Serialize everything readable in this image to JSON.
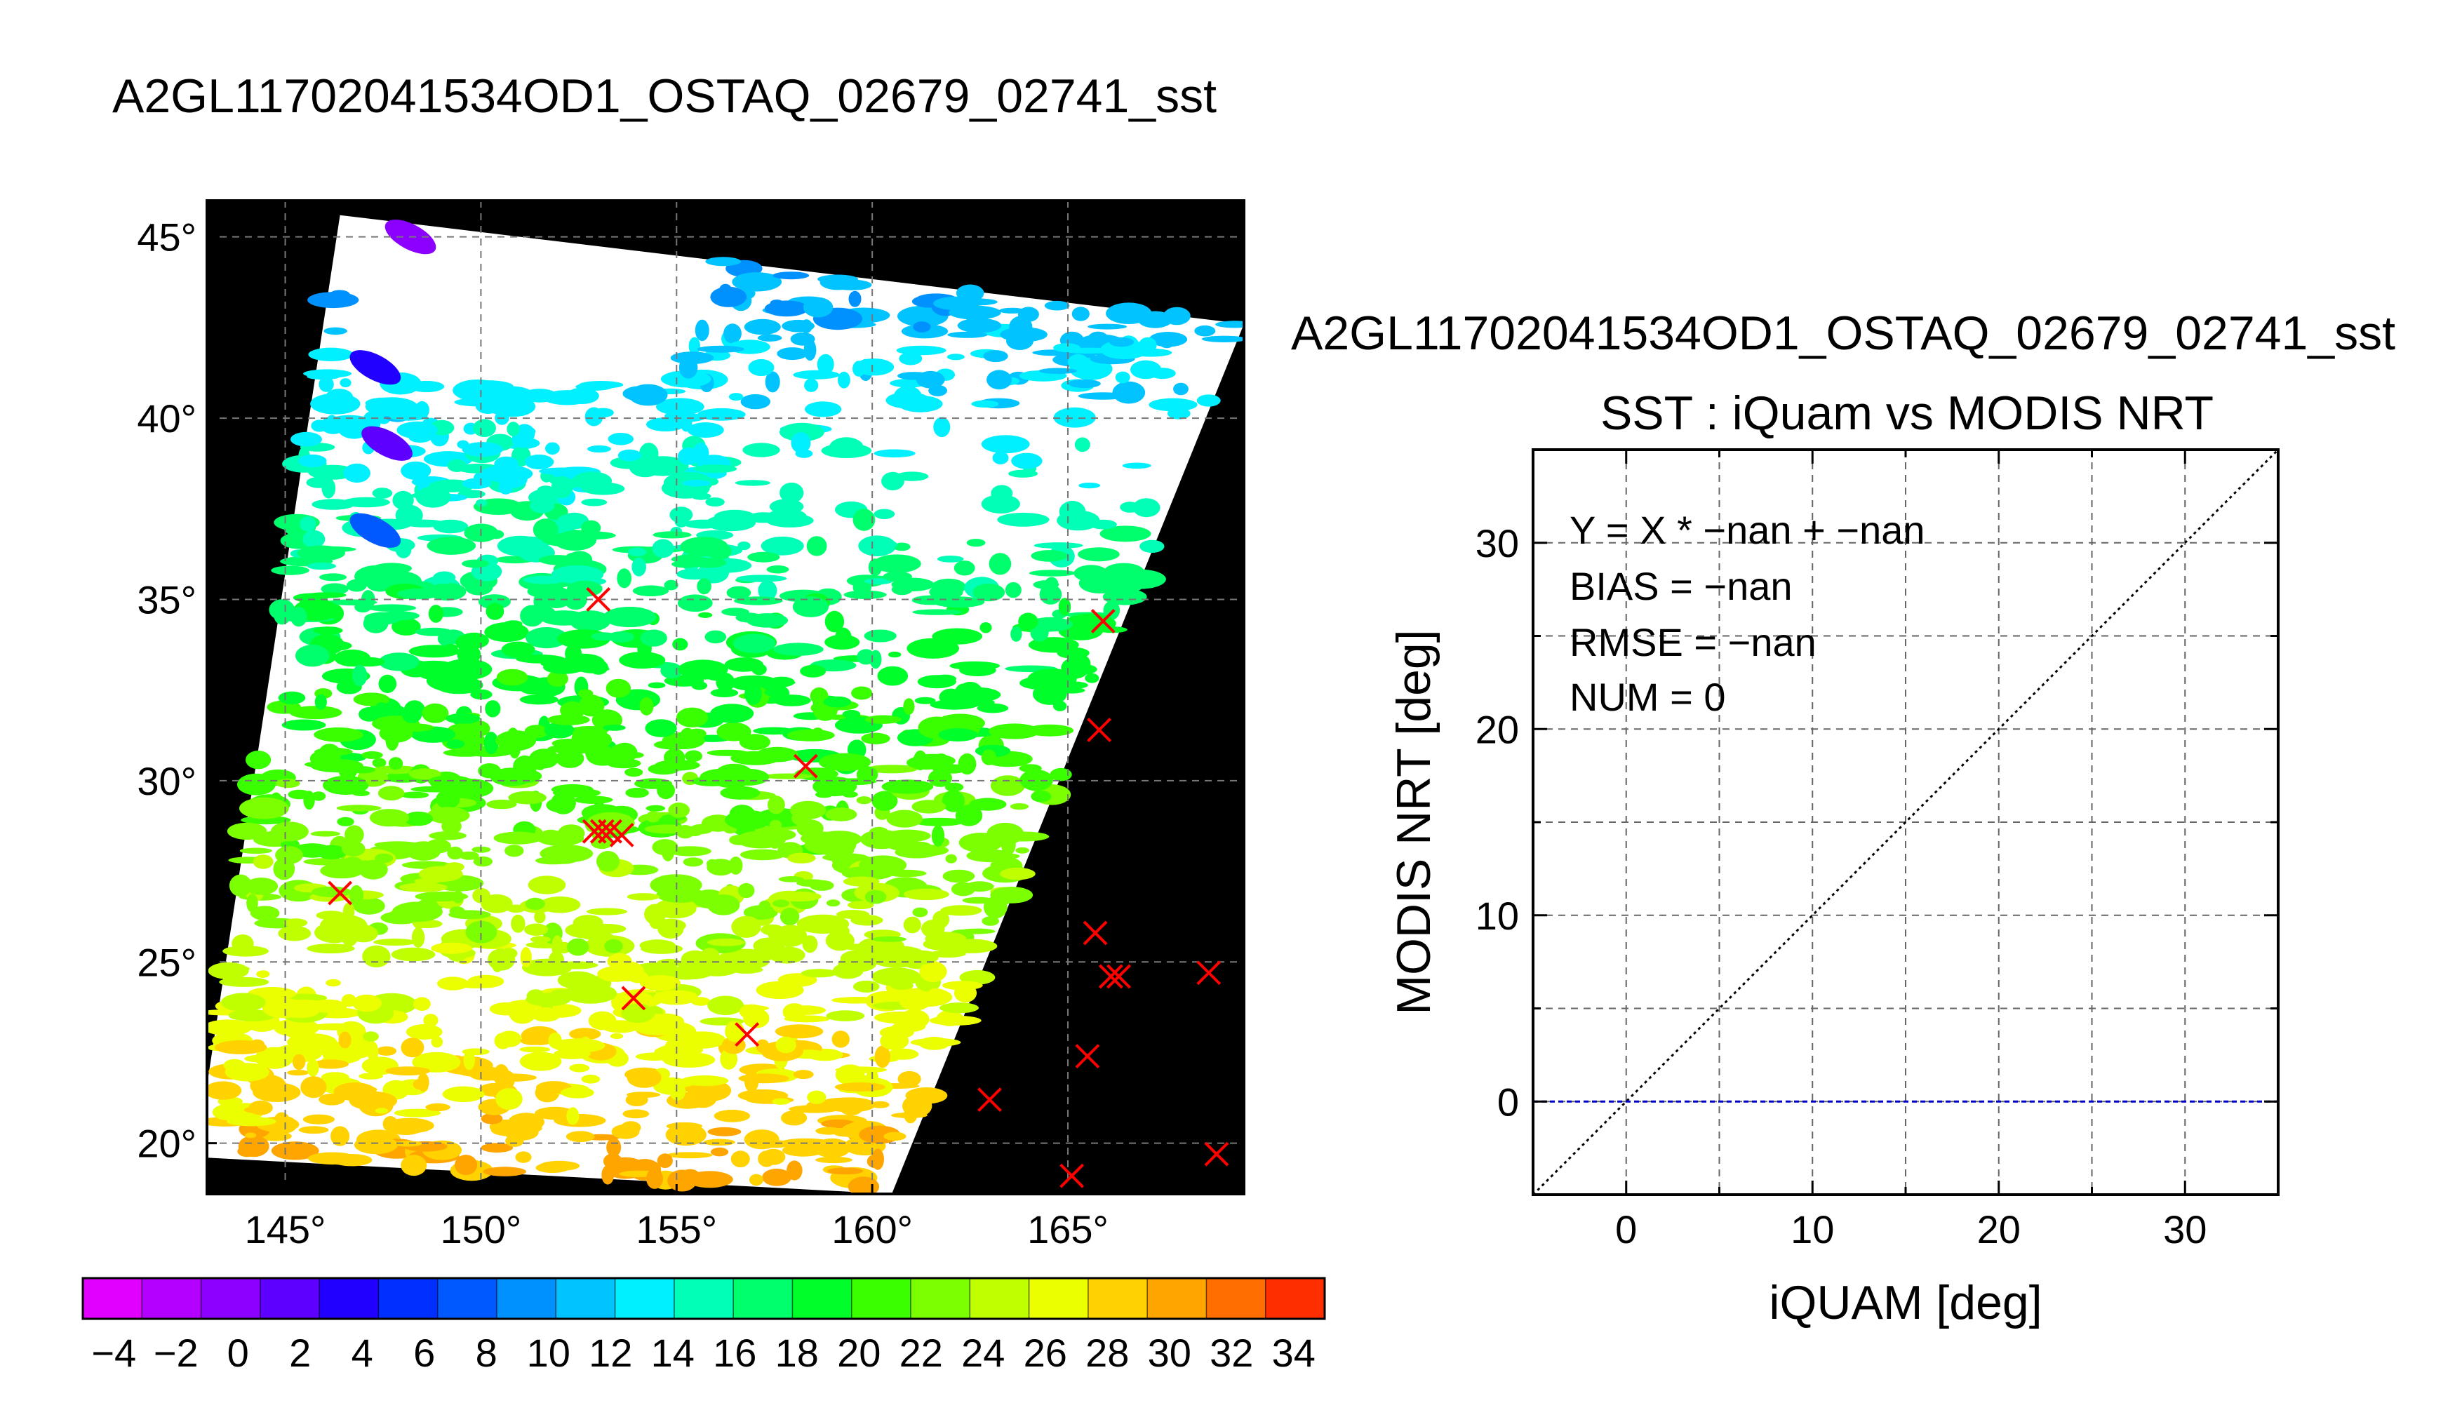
{
  "figure": {
    "main_title": "A2GL11702041534OD1_OSTAQ_02679_02741_sst"
  },
  "chart_data": [
    {
      "type": "heatmap",
      "description_kind": "map",
      "xlim": [
        143,
        169.5
      ],
      "ylim": [
        18.6,
        46
      ],
      "x_ticks": [
        145,
        150,
        155,
        160,
        165
      ],
      "y_ticks": [
        20,
        25,
        30,
        35,
        40,
        45
      ],
      "tick_suffix": "°",
      "grid": true,
      "background_color": "#000000",
      "swath_color": "#ffffff",
      "swath_polygon": [
        [
          146.4,
          45.6
        ],
        [
          169.5,
          42.6
        ],
        [
          160.5,
          18.6
        ],
        [
          143.0,
          19.6
        ],
        [
          143.0,
          21.6
        ]
      ],
      "markers": {
        "symbol": "x",
        "color": "#ff0000",
        "points": [
          [
            153.0,
            35.0
          ],
          [
            165.9,
            34.4
          ],
          [
            165.8,
            31.4
          ],
          [
            158.3,
            30.4
          ],
          [
            152.9,
            28.6
          ],
          [
            153.1,
            28.6
          ],
          [
            153.3,
            28.6
          ],
          [
            153.6,
            28.5
          ],
          [
            146.4,
            26.9
          ],
          [
            165.7,
            25.8
          ],
          [
            166.1,
            24.6
          ],
          [
            166.3,
            24.6
          ],
          [
            168.6,
            24.7
          ],
          [
            153.9,
            24.0
          ],
          [
            156.8,
            23.0
          ],
          [
            165.5,
            22.4
          ],
          [
            163.0,
            21.2
          ],
          [
            165.1,
            19.1
          ],
          [
            168.8,
            19.7
          ]
        ]
      }
    },
    {
      "type": "colorbar",
      "range": [
        -5,
        35
      ],
      "tick_values": [
        -4,
        -2,
        0,
        2,
        4,
        6,
        8,
        10,
        12,
        14,
        16,
        18,
        20,
        22,
        24,
        26,
        28,
        30,
        32,
        34
      ],
      "tick_labels": [
        "−4",
        "−2",
        "0",
        "2",
        "4",
        "6",
        "8",
        "10",
        "12",
        "14",
        "16",
        "18",
        "20",
        "22",
        "24",
        "26",
        "28",
        "30",
        "32",
        "34"
      ],
      "colors": [
        "#e100ff",
        "#b300ff",
        "#8c00ff",
        "#5e00ff",
        "#2200ff",
        "#0030ff",
        "#0059ff",
        "#0091ff",
        "#00c3ff",
        "#00f0ff",
        "#00ffb7",
        "#00ff6d",
        "#00ff2a",
        "#3aff00",
        "#7cff00",
        "#bfff00",
        "#ecff00",
        "#ffd200",
        "#ffa500",
        "#ff6e00",
        "#ff2e00"
      ]
    },
    {
      "type": "scatter",
      "subtitle_top": "A2GL11702041534OD1_OSTAQ_02679_02741_sst",
      "title": "SST : iQuam vs MODIS NRT",
      "xlabel": "iQUAM [deg]",
      "ylabel": "MODIS NRT [deg]",
      "xlim": [
        -5,
        35
      ],
      "ylim": [
        -5,
        35
      ],
      "x_ticks": [
        0,
        10,
        20,
        30
      ],
      "y_ticks": [
        0,
        10,
        20,
        30
      ],
      "grid_step": 5,
      "grid": true,
      "stats": [
        "Y = X * −nan + −nan",
        "BIAS = −nan",
        "RMSE = −nan",
        "NUM = 0"
      ],
      "points": [],
      "reference_lines": [
        {
          "kind": "identity",
          "from": [
            -5,
            -5
          ],
          "to": [
            35,
            35
          ],
          "color": "#000000",
          "style": "dotted"
        },
        {
          "kind": "horizontal",
          "y": 0,
          "from_x": -5,
          "to_x": 35,
          "color": "#0000cc",
          "style": "dashed"
        }
      ]
    }
  ]
}
